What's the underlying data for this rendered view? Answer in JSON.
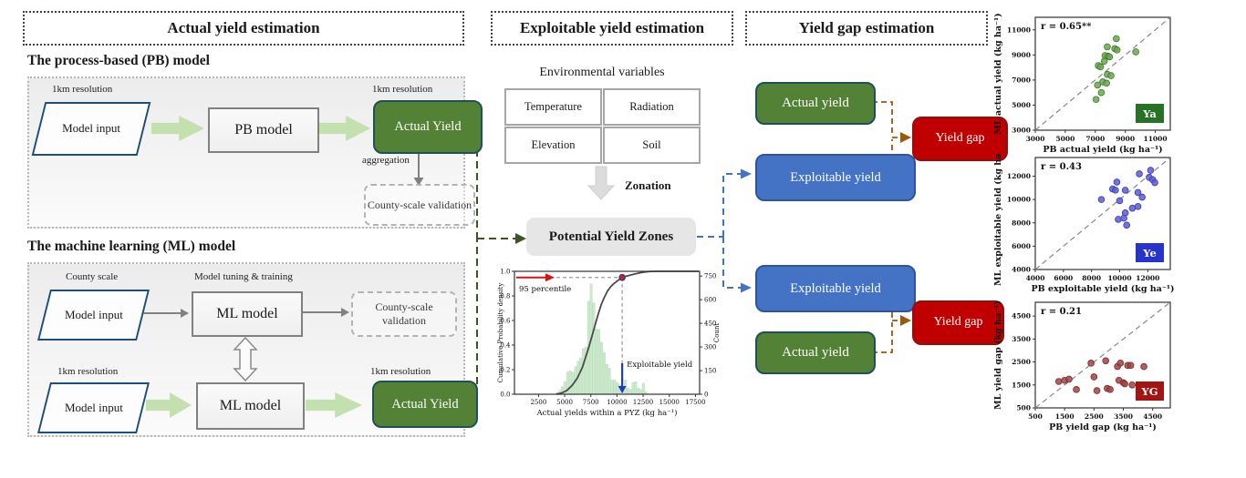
{
  "headers": {
    "actual": "Actual yield estimation",
    "exploitable": "Exploitable yield estimation",
    "gap": "Yield gap estimation"
  },
  "pb": {
    "heading": "The process-based (PB) model",
    "res_input": "1km resolution",
    "input": "Model input",
    "model": "PB model",
    "res_output": "1km resolution",
    "output": "Actual Yield",
    "aggregation": "aggregation",
    "validation": "County-scale validation"
  },
  "ml": {
    "heading": "The machine learning (ML) model",
    "county_scale": "County scale",
    "input_top": "Model input",
    "tuning": "Model tuning & training",
    "model_top": "ML model",
    "validation": "County-scale validation",
    "res_input": "1km resolution",
    "input_bottom": "Model input",
    "model_bottom": "ML model",
    "res_output": "1km resolution",
    "output": "Actual Yield"
  },
  "middle": {
    "env_title": "Environmental variables",
    "vars": [
      "Temperature",
      "Radiation",
      "Elevation",
      "Soil"
    ],
    "zonation": "Zonation",
    "pyz": "Potential Yield Zones"
  },
  "gap": {
    "actual_top": "Actual yield",
    "exploitable_top": "Exploitable yield",
    "exploitable_bottom": "Exploitable yield",
    "actual_bottom": "Actual yield",
    "gap_top": "Yield gap",
    "gap_bottom": "Yield gap"
  },
  "colors": {
    "green_box": "#538135",
    "blue_box": "#4472c4",
    "red_box": "#c00000",
    "fat_arrow_green": "#c3e0ae",
    "dark_green_dash": "#3b5526",
    "blue_dash": "#4472c4",
    "brown_dash": "#9c5708"
  },
  "chart_data": [
    {
      "type": "area",
      "name": "cdf-histogram",
      "xlabel": "Actual yields within a PYZ (kg ha⁻¹)",
      "ylabel_left": "Cumulative Probability density",
      "ylabel_right": "Count",
      "xlim": [
        200,
        17900
      ],
      "xticks": [
        2500,
        5000,
        7500,
        10000,
        12500,
        15000,
        17500
      ],
      "ylim_left": [
        0,
        1.0
      ],
      "yticks_left": [
        "0.0",
        "0.2",
        "0.4",
        "0.6",
        "0.8",
        "1.0"
      ],
      "ylim_right": [
        0,
        780
      ],
      "yticks_right": [
        0,
        150,
        300,
        450,
        600,
        750
      ],
      "hist_binwidth": 250,
      "hist_color": "#bfe3c2",
      "histogram": [
        [
          4300,
          10
        ],
        [
          4550,
          25
        ],
        [
          4800,
          45
        ],
        [
          5050,
          80
        ],
        [
          5300,
          140
        ],
        [
          5550,
          150
        ],
        [
          5800,
          140
        ],
        [
          6050,
          175
        ],
        [
          6300,
          210
        ],
        [
          6550,
          230
        ],
        [
          6800,
          290
        ],
        [
          7050,
          300
        ],
        [
          7300,
          590
        ],
        [
          7550,
          700
        ],
        [
          7800,
          580
        ],
        [
          8050,
          415
        ],
        [
          8300,
          410
        ],
        [
          8550,
          330
        ],
        [
          8800,
          265
        ],
        [
          9050,
          190
        ],
        [
          9300,
          165
        ],
        [
          9550,
          90
        ],
        [
          9800,
          90
        ],
        [
          10050,
          75
        ],
        [
          10300,
          60
        ],
        [
          10550,
          50
        ],
        [
          10800,
          90
        ],
        [
          11050,
          40
        ],
        [
          11300,
          30
        ],
        [
          11550,
          75
        ],
        [
          11800,
          80
        ],
        [
          12050,
          40
        ],
        [
          12300,
          30
        ],
        [
          12550,
          70
        ],
        [
          12800,
          15
        ]
      ],
      "cdf_color": "#4a4a4a",
      "cdf": [
        [
          4200,
          0
        ],
        [
          4700,
          0.01
        ],
        [
          5200,
          0.03
        ],
        [
          5700,
          0.07
        ],
        [
          6200,
          0.13
        ],
        [
          6700,
          0.22
        ],
        [
          7000,
          0.3
        ],
        [
          7300,
          0.38
        ],
        [
          7600,
          0.47
        ],
        [
          7900,
          0.56
        ],
        [
          8200,
          0.65
        ],
        [
          8500,
          0.73
        ],
        [
          8800,
          0.79
        ],
        [
          9100,
          0.84
        ],
        [
          9400,
          0.875
        ],
        [
          9700,
          0.9
        ],
        [
          10000,
          0.92
        ],
        [
          10500,
          0.95
        ],
        [
          11000,
          0.963
        ],
        [
          11500,
          0.974
        ],
        [
          12000,
          0.984
        ],
        [
          12500,
          0.993
        ],
        [
          13200,
          0.999
        ],
        [
          14000,
          1.0
        ],
        [
          17800,
          1.0
        ]
      ],
      "annotations": {
        "percentile_label": "95 percentile",
        "percentile_y": 0.95,
        "exploitable_x": 10500,
        "exploitable_label": "Exploitable yield",
        "arrow_red": "#dd1111",
        "arrow_blue": "#1f3bb8"
      }
    },
    {
      "type": "scatter",
      "name": "Ya",
      "r_label": "r = 0.65**",
      "badge": "Ya",
      "badge_color": "#267326",
      "dot_color": "#6aa84f",
      "dot_edge": "#3d7a2e",
      "xlabel": "PB actual yield (kg ha⁻¹)",
      "ylabel": "ML actual yield (kg ha⁻¹)",
      "xlim": [
        3000,
        12000
      ],
      "ylim": [
        3000,
        12000
      ],
      "xticks": [
        3000,
        5000,
        7000,
        9000,
        11000
      ],
      "yticks": [
        3000,
        5000,
        7000,
        9000,
        11000
      ],
      "points": [
        [
          8400,
          10300
        ],
        [
          7800,
          9650
        ],
        [
          8300,
          9500
        ],
        [
          8450,
          9400
        ],
        [
          9700,
          9250
        ],
        [
          7650,
          8950
        ],
        [
          7850,
          8900
        ],
        [
          7950,
          8850
        ],
        [
          7600,
          8500
        ],
        [
          7200,
          8150
        ],
        [
          7350,
          8050
        ],
        [
          7800,
          7450
        ],
        [
          8050,
          7350
        ],
        [
          7500,
          6850
        ],
        [
          7750,
          6750
        ],
        [
          7150,
          6600
        ],
        [
          7400,
          6000
        ],
        [
          7050,
          5450
        ]
      ]
    },
    {
      "type": "scatter",
      "name": "Ye",
      "r_label": "r = 0.43",
      "badge": "Ye",
      "badge_color": "#2633cc",
      "dot_color": "#5b5bd6",
      "dot_edge": "#3c3cb0",
      "xlabel": "PB exploitable yield (kg ha⁻¹)",
      "ylabel": "ML exploitable yield (kg ha⁻¹)",
      "xlim": [
        4000,
        13600
      ],
      "ylim": [
        4000,
        13600
      ],
      "xticks": [
        4000,
        6000,
        8000,
        10000,
        12000
      ],
      "yticks": [
        4000,
        6000,
        8000,
        10000,
        12000
      ],
      "points": [
        [
          12200,
          12500
        ],
        [
          11400,
          12200
        ],
        [
          12100,
          11900
        ],
        [
          12350,
          11700
        ],
        [
          12500,
          11450
        ],
        [
          9800,
          11500
        ],
        [
          9500,
          10900
        ],
        [
          9700,
          10800
        ],
        [
          10400,
          10800
        ],
        [
          11300,
          10600
        ],
        [
          8700,
          10000
        ],
        [
          11600,
          10200
        ],
        [
          10000,
          9900
        ],
        [
          10900,
          9250
        ],
        [
          11300,
          9400
        ],
        [
          10400,
          8850
        ],
        [
          9900,
          8300
        ],
        [
          10300,
          8400
        ],
        [
          10500,
          7800
        ]
      ]
    },
    {
      "type": "scatter",
      "name": "YG",
      "r_label": "r = 0.21",
      "badge": "YG",
      "badge_color": "#a31515",
      "dot_color": "#a04343",
      "dot_edge": "#7c2a2a",
      "xlabel": "PB yield gap (kg ha⁻¹)",
      "ylabel": "ML yield gap (kg ha⁻¹)",
      "xlim": [
        500,
        5100
      ],
      "ylim": [
        500,
        5100
      ],
      "xticks": [
        500,
        1500,
        2500,
        3500,
        4500
      ],
      "yticks": [
        500,
        1500,
        2500,
        3500,
        4500
      ],
      "points": [
        [
          1300,
          1650
        ],
        [
          1500,
          1700
        ],
        [
          1650,
          1750
        ],
        [
          1900,
          1300
        ],
        [
          2400,
          2450
        ],
        [
          2500,
          1850
        ],
        [
          2600,
          1250
        ],
        [
          2900,
          2550
        ],
        [
          2950,
          1350
        ],
        [
          3050,
          1300
        ],
        [
          3300,
          2300
        ],
        [
          3350,
          1700
        ],
        [
          3400,
          2450
        ],
        [
          3500,
          1600
        ],
        [
          3550,
          1550
        ],
        [
          3650,
          2350
        ],
        [
          3750,
          2350
        ],
        [
          3800,
          1500
        ],
        [
          4200,
          2300
        ]
      ]
    }
  ]
}
